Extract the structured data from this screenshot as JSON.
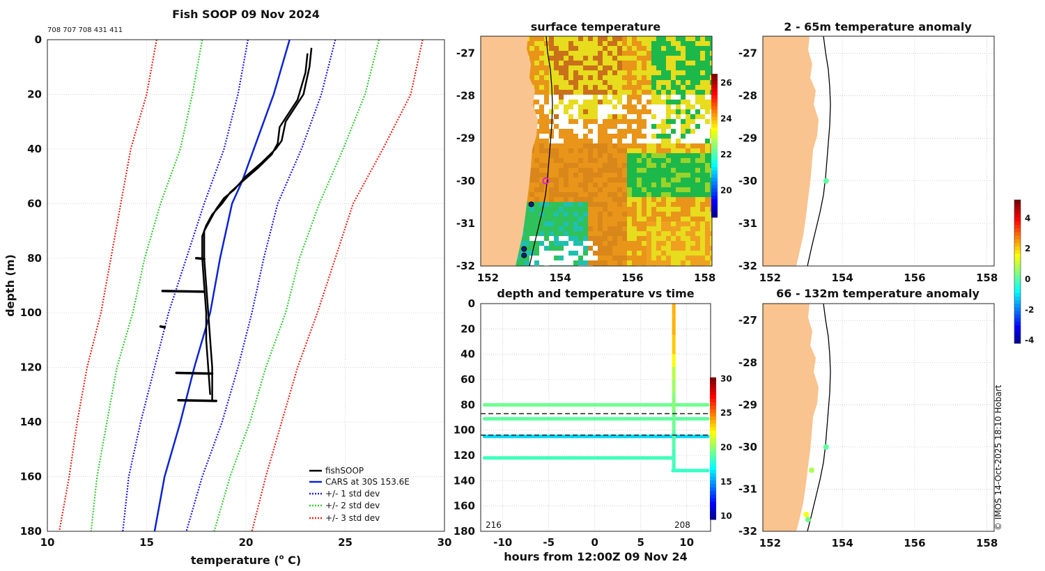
{
  "figure": {
    "credit": "© IMOS 14-Oct-2025 18:10 Hobart"
  },
  "colors": {
    "fishsoop": "#000000",
    "cars": "#0b23d6",
    "std1": "#1a1ae6",
    "std2": "#33cc33",
    "std3": "#e8261a",
    "land": "#f9c48f",
    "warm": "#e07c10",
    "mid": "#e7dc1d",
    "cool": "#1db84a"
  },
  "chart_data": [
    {
      "id": "profile",
      "type": "line",
      "title": "Fish SOOP 09 Nov 2024",
      "subtitle": "708 707 708 431 411",
      "xlabel": "temperature (",
      "xlabel_sup": "o",
      "xlabel_end": " C)",
      "ylabel": "depth (m)",
      "xlim": [
        10,
        30
      ],
      "ylim": [
        0,
        180
      ],
      "xticks": [
        10,
        15,
        20,
        25,
        30
      ],
      "yticks": [
        0,
        20,
        40,
        60,
        80,
        100,
        120,
        140,
        160,
        180
      ],
      "legend": [
        "fishSOOP",
        "CARS at 30S 153.6E",
        "+/- 1 std dev",
        "+/- 2 std dev",
        "+/- 3 std dev"
      ],
      "legend_position": "bottom-right",
      "series": [
        {
          "name": "CARS mean",
          "depth": [
            0,
            20,
            40,
            52,
            60,
            80,
            100,
            120,
            140,
            160,
            180
          ],
          "temp": [
            22.2,
            21.4,
            20.4,
            19.8,
            19.3,
            18.7,
            18.2,
            17.4,
            16.7,
            15.9,
            15.4
          ]
        },
        {
          "name": "+1 std",
          "depth": [
            0,
            20,
            40,
            60,
            80,
            100,
            120,
            140,
            160,
            180
          ],
          "temp": [
            24.5,
            23.8,
            22.8,
            21.6,
            20.9,
            20.3,
            19.6,
            18.8,
            17.8,
            17.0
          ]
        },
        {
          "name": "-1 std",
          "depth": [
            0,
            20,
            40,
            60,
            80,
            100,
            120,
            140,
            160,
            180
          ],
          "temp": [
            20.1,
            19.6,
            18.9,
            17.9,
            17.0,
            16.1,
            15.4,
            14.7,
            14.1,
            13.8
          ]
        },
        {
          "name": "+2 std",
          "depth": [
            0,
            20,
            40,
            60,
            80,
            100,
            120,
            140,
            160,
            180
          ],
          "temp": [
            26.7,
            26.0,
            24.9,
            23.7,
            22.7,
            22.0,
            21.0,
            20.2,
            19.2,
            18.4
          ]
        },
        {
          "name": "-2 std",
          "depth": [
            0,
            20,
            40,
            60,
            80,
            100,
            120,
            140,
            160,
            180
          ],
          "temp": [
            17.8,
            17.3,
            16.7,
            15.7,
            14.9,
            14.3,
            13.5,
            13.0,
            12.5,
            12.2
          ]
        },
        {
          "name": "+3 std",
          "depth": [
            0,
            20,
            40,
            60,
            80,
            100,
            120,
            140,
            160,
            180
          ],
          "temp": [
            28.9,
            28.3,
            26.9,
            25.4,
            24.5,
            23.6,
            22.6,
            21.8,
            21.0,
            20.3
          ]
        },
        {
          "name": "-3 std",
          "depth": [
            0,
            20,
            40,
            60,
            80,
            100,
            120,
            140,
            160,
            180
          ],
          "temp": [
            15.5,
            15.0,
            14.2,
            13.7,
            13.2,
            12.7,
            12.0,
            11.5,
            11.1,
            10.6
          ]
        },
        {
          "name": "fishSOOP a",
          "depth": [
            3,
            10,
            20,
            30,
            37,
            40,
            45,
            50,
            55,
            58,
            62,
            66,
            70,
            80,
            90,
            100,
            110,
            120,
            132
          ],
          "temp": [
            23.3,
            23.2,
            22.9,
            22.0,
            21.8,
            21.5,
            20.8,
            20.0,
            19.4,
            18.9,
            18.5,
            18.2,
            17.9,
            17.9,
            18.0,
            18.1,
            18.2,
            18.3,
            18.3
          ]
        },
        {
          "name": "fishSOOP b",
          "depth": [
            5,
            12,
            22,
            32,
            38,
            42,
            47,
            52,
            56,
            60,
            64,
            68,
            72,
            80,
            90,
            100,
            110,
            120,
            130
          ],
          "temp": [
            23.1,
            23.0,
            22.6,
            21.7,
            21.6,
            21.3,
            20.6,
            19.8,
            19.2,
            18.8,
            18.3,
            18.0,
            17.8,
            17.8,
            17.9,
            18.0,
            18.0,
            18.1,
            18.2
          ]
        }
      ],
      "bottom_stops": [
        {
          "depth": 80,
          "t0": 17.5,
          "t1": 17.9
        },
        {
          "depth": 92,
          "t0": 15.8,
          "t1": 17.9
        },
        {
          "depth": 105,
          "t0": 15.7,
          "t1": 15.9
        },
        {
          "depth": 122,
          "t0": 16.5,
          "t1": 18.3
        },
        {
          "depth": 132,
          "t0": 16.6,
          "t1": 18.5
        }
      ]
    },
    {
      "id": "sst",
      "type": "heatmap",
      "title": "surface temperature",
      "xlim": [
        151.8,
        158.2
      ],
      "ylim": [
        -32,
        -26.6
      ],
      "xticks": [
        152,
        154,
        156,
        158
      ],
      "yticks": [
        -27,
        -28,
        -29,
        -30,
        -31,
        -32
      ],
      "colorbar": {
        "min": 18.5,
        "max": 26.5,
        "ticks": [
          20,
          22,
          24,
          26
        ]
      },
      "stations": [
        {
          "lon": 153.6,
          "lat": -30.0,
          "kind": "current"
        },
        {
          "lon": 153.2,
          "lat": -30.55,
          "kind": "past"
        },
        {
          "lon": 153.0,
          "lat": -31.6,
          "kind": "past"
        },
        {
          "lon": 153.0,
          "lat": -31.75,
          "kind": "past"
        }
      ]
    },
    {
      "id": "anom_shallow",
      "type": "scatter",
      "title": "2 - 65m temperature anomaly",
      "xlim": [
        151.8,
        158.2
      ],
      "ylim": [
        -32,
        -26.6
      ],
      "xticks": [
        152,
        154,
        156,
        158
      ],
      "yticks": [
        -27,
        -28,
        -29,
        -30,
        -31,
        -32
      ],
      "points": [
        {
          "lon": 153.55,
          "lat": -30.0,
          "anomaly": 0.2
        }
      ]
    },
    {
      "id": "anom_deep",
      "type": "scatter",
      "title": "66 - 132m temperature anomaly",
      "xlim": [
        151.8,
        158.2
      ],
      "ylim": [
        -32,
        -26.6
      ],
      "xticks": [
        152,
        154,
        156,
        158
      ],
      "yticks": [
        -27,
        -28,
        -29,
        -30,
        -31,
        -32
      ],
      "colorbar": {
        "min": -4.2,
        "max": 5.2,
        "ticks": [
          4,
          2,
          0,
          -2,
          -4
        ]
      },
      "points": [
        {
          "lon": 153.55,
          "lat": -30.0,
          "anomaly": 0.2
        },
        {
          "lon": 153.15,
          "lat": -30.55,
          "anomaly": 0.9
        },
        {
          "lon": 153.0,
          "lat": -31.6,
          "anomaly": 1.6
        },
        {
          "lon": 153.05,
          "lat": -31.72,
          "anomaly": 0.4
        }
      ]
    },
    {
      "id": "timeseries",
      "type": "scatter",
      "title": "depth and temperature vs time",
      "xlabel": "hours from 12:00Z 09 Nov 24",
      "xlim": [
        -12.4,
        12.6
      ],
      "ylim": [
        0,
        180
      ],
      "xticks": [
        -10,
        -5,
        0,
        5,
        10
      ],
      "yticks": [
        0,
        20,
        40,
        60,
        80,
        100,
        120,
        140,
        160,
        180
      ],
      "colorbar": {
        "min": 9.5,
        "max": 30.2,
        "ticks": [
          30,
          25,
          20,
          15,
          10
        ]
      },
      "annotations": [
        "216",
        "208"
      ],
      "dashed_depths": [
        87,
        104
      ],
      "tracks": [
        {
          "depth": 80,
          "from": -12,
          "to": 12.3,
          "temp": 19.5
        },
        {
          "depth": 91,
          "from": -12,
          "to": 12.3,
          "temp": 19.2
        },
        {
          "depth": 105,
          "from": -12,
          "to": 12.3,
          "temp": 16.5
        },
        {
          "depth": 122,
          "from": -12,
          "to": 8.5,
          "temp": 18.6
        },
        {
          "depth": 132,
          "from": 8.5,
          "to": 12.3,
          "temp": 18.4
        }
      ],
      "cast": {
        "hour": 8.6,
        "depth": [
          0,
          10,
          25,
          40,
          50,
          60,
          70,
          85,
          100,
          115,
          132
        ],
        "temp": [
          24,
          24,
          23.5,
          22.5,
          21,
          20.5,
          20,
          19.5,
          19,
          18.6,
          18.4
        ]
      }
    }
  ]
}
